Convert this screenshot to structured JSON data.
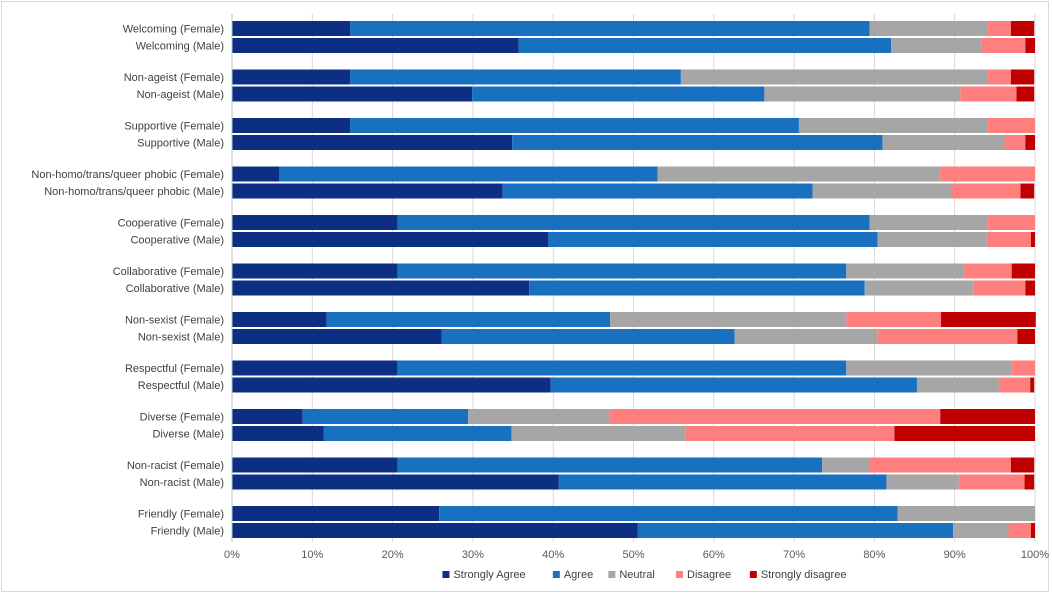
{
  "chart_data": {
    "type": "bar",
    "orientation": "horizontal",
    "stacked": "percent",
    "categories": [
      "Welcoming (Female)",
      "Welcoming (Male)",
      "Non-ageist (Female)",
      "Non-ageist (Male)",
      "Supportive (Female)",
      "Supportive (Male)",
      "Non-homo/trans/queer phobic (Female)",
      "Non-homo/trans/queer phobic (Male)",
      "Cooperative (Female)",
      "Cooperative (Male)",
      "Collaborative (Female)",
      "Collaborative (Male)",
      "Non-sexist (Female)",
      "Non-sexist (Male)",
      "Respectful (Female)",
      "Respectful (Male)",
      "Diverse (Female)",
      "Diverse (Male)",
      "Non-racist (Female)",
      "Non-racist (Male)",
      "Friendly (Female)",
      "Friendly (Male)"
    ],
    "series": [
      {
        "name": "Strongly Agree",
        "color": "#0c2f84",
        "values": [
          14.7,
          35.7,
          14.7,
          29.9,
          14.7,
          34.9,
          5.9,
          33.7,
          20.6,
          39.4,
          20.6,
          37.0,
          11.8,
          26.1,
          20.6,
          39.7,
          8.8,
          11.4,
          20.6,
          40.7,
          25.8,
          50.5
        ]
      },
      {
        "name": "Agree",
        "color": "#1a70c0",
        "values": [
          64.7,
          46.4,
          41.2,
          36.4,
          55.9,
          46.1,
          47.1,
          38.6,
          58.8,
          41.0,
          55.9,
          41.8,
          35.3,
          36.5,
          55.9,
          45.6,
          20.6,
          23.4,
          52.9,
          40.8,
          57.1,
          39.3
        ]
      },
      {
        "name": "Neutral",
        "color": "#a6a6a6",
        "values": [
          14.7,
          11.2,
          38.2,
          24.4,
          23.5,
          15.2,
          35.2,
          17.3,
          14.7,
          13.6,
          14.7,
          13.5,
          29.4,
          17.8,
          20.6,
          10.2,
          17.6,
          21.7,
          5.9,
          9.0,
          17.1,
          6.9
        ]
      },
      {
        "name": "Disagree",
        "color": "#ff7f7f",
        "values": [
          2.9,
          5.5,
          2.9,
          7.0,
          5.9,
          2.6,
          11.8,
          8.6,
          5.9,
          5.5,
          5.9,
          6.5,
          11.8,
          17.4,
          2.9,
          3.9,
          41.2,
          26.0,
          17.6,
          8.2,
          0.0,
          2.8
        ]
      },
      {
        "name": "Strongly disagree",
        "color": "#c00000",
        "values": [
          2.9,
          1.2,
          2.9,
          2.2,
          0.0,
          1.2,
          0.0,
          1.7,
          0.0,
          0.5,
          2.9,
          1.2,
          11.8,
          2.2,
          0.0,
          0.5,
          11.8,
          17.5,
          2.9,
          1.2,
          0.0,
          0.5
        ]
      }
    ],
    "x_ticks": [
      "0%",
      "10%",
      "20%",
      "30%",
      "40%",
      "50%",
      "60%",
      "70%",
      "80%",
      "90%",
      "100%"
    ],
    "xlim": [
      0,
      100
    ],
    "grid": true,
    "legend_position": "bottom",
    "title": "",
    "xlabel": "",
    "ylabel": ""
  }
}
